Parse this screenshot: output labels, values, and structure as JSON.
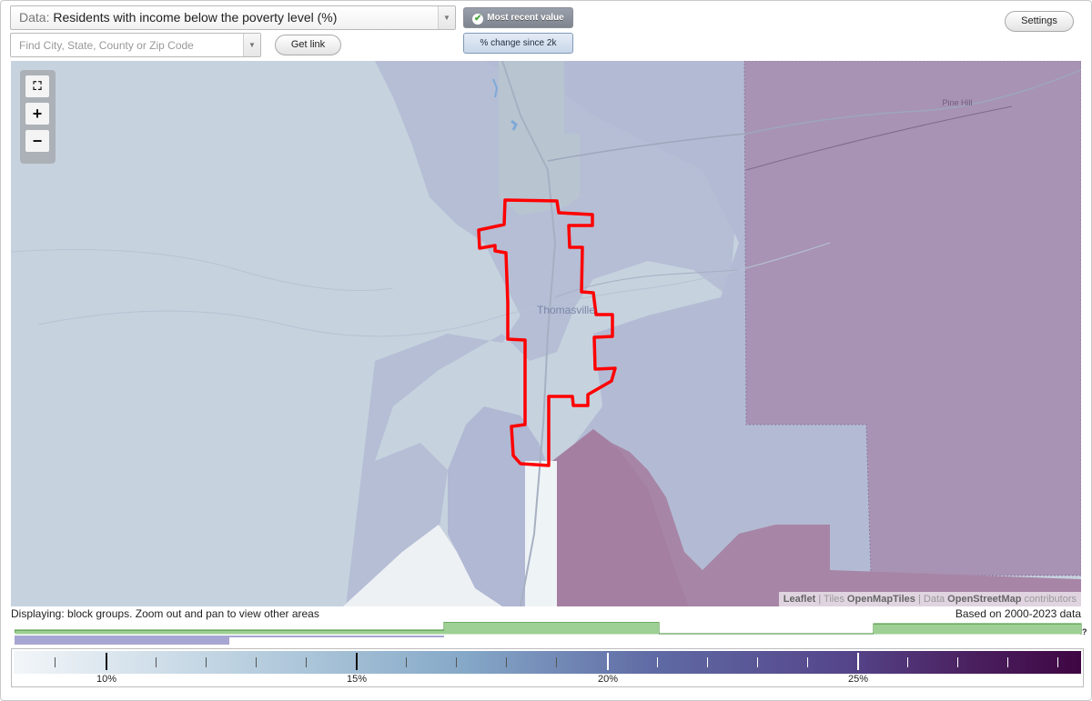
{
  "header": {
    "data_prefix": "Data:",
    "data_value": "Residents with income below the poverty level (%)",
    "search_placeholder": "Find City, State, County or Zip Code",
    "get_link_label": "Get link",
    "most_recent_label": "Most recent value",
    "percent_change_label": "% change since 2k",
    "settings_label": "Settings"
  },
  "map": {
    "city_label": "Thomasville",
    "place_label": "Pine Hill",
    "highlight_color": "#ff0000",
    "zoom_controls": {
      "fullscreen_icon": "fullscreen-icon",
      "zoom_in": "+",
      "zoom_out": "−"
    },
    "attribution": {
      "leaflet": "Leaflet",
      "sep1": " | Tiles ",
      "tiles": "OpenMapTiles",
      "sep2": " | Data ",
      "data": "OpenStreetMap",
      "contributors": " contributors"
    }
  },
  "status": {
    "displaying": "Displaying: block groups. Zoom out and pan to view other areas",
    "based_on": "Based on 2000-2023 data",
    "help_mark": "?"
  },
  "legend": {
    "labels": [
      "10%",
      "15%",
      "20%",
      "25%"
    ],
    "scale_min": 8.1,
    "scale_max": 29.3,
    "histogram_color": "#9ecf94",
    "selection_color": "#a7a5d1",
    "selected_range": [
      8.1,
      12.4
    ]
  }
}
